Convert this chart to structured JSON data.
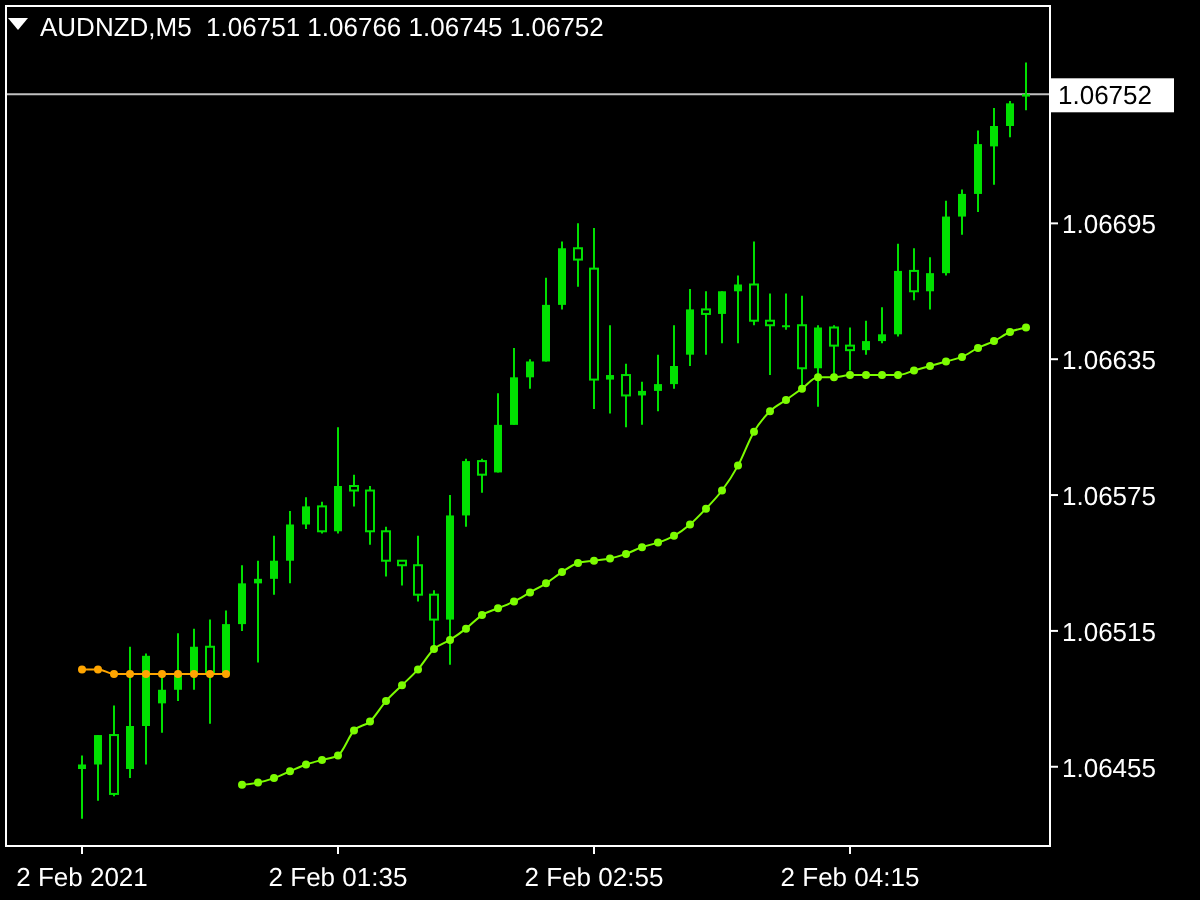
{
  "chart_data": {
    "type": "candlestick",
    "title": "AUDNZD,M5  1.06751 1.06766 1.06745 1.06752",
    "color": "#00e000",
    "categories": [
      "2 Feb 2021",
      null,
      null,
      null,
      null,
      null,
      null,
      null,
      null,
      null,
      null,
      null,
      null,
      null,
      null,
      null,
      "2 Feb 01:35",
      null,
      null,
      null,
      null,
      null,
      null,
      null,
      null,
      null,
      null,
      null,
      null,
      null,
      null,
      null,
      "2 Feb 02:55",
      null,
      null,
      null,
      null,
      null,
      null,
      null,
      null,
      null,
      null,
      null,
      null,
      null,
      null,
      null,
      "2 Feb 04:15",
      null,
      null,
      null,
      null,
      null,
      null,
      null,
      null,
      null,
      null,
      null
    ],
    "ohlc": [
      [
        1.06454,
        1.0646,
        1.06432,
        1.06456
      ],
      [
        1.06456,
        1.06469,
        1.0644,
        1.06469
      ],
      [
        1.06469,
        1.06482,
        1.06442,
        1.06443
      ],
      [
        1.06454,
        1.06508,
        1.0645,
        1.06473
      ],
      [
        1.06473,
        1.06505,
        1.06456,
        1.06504
      ],
      [
        1.06483,
        1.06496,
        1.0647,
        1.06489
      ],
      [
        1.06489,
        1.06514,
        1.06484,
        1.06496
      ],
      [
        1.06496,
        1.06516,
        1.06489,
        1.06508
      ],
      [
        1.06508,
        1.0652,
        1.06474,
        1.06496
      ],
      [
        1.06496,
        1.06524,
        1.06496,
        1.06518
      ],
      [
        1.06518,
        1.06544,
        1.06515,
        1.06536
      ],
      [
        1.06536,
        1.06546,
        1.06501,
        1.06538
      ],
      [
        1.06538,
        1.06557,
        1.06531,
        1.06546
      ],
      [
        1.06546,
        1.06568,
        1.06536,
        1.06562
      ],
      [
        1.06562,
        1.06574,
        1.0656,
        1.0657
      ],
      [
        1.0657,
        1.06572,
        1.06558,
        1.06559
      ],
      [
        1.06559,
        1.06605,
        1.06558,
        1.06579
      ],
      [
        1.06579,
        1.06584,
        1.0657,
        1.06577
      ],
      [
        1.06577,
        1.06579,
        1.06553,
        1.06559
      ],
      [
        1.06559,
        1.06561,
        1.06539,
        1.06546
      ],
      [
        1.06546,
        1.06546,
        1.06535,
        1.06544
      ],
      [
        1.06544,
        1.06557,
        1.06528,
        1.06531
      ],
      [
        1.06531,
        1.06533,
        1.06508,
        1.0652
      ],
      [
        1.0652,
        1.06575,
        1.065,
        1.06566
      ],
      [
        1.06566,
        1.06591,
        1.06561,
        1.0659
      ],
      [
        1.0659,
        1.06591,
        1.06576,
        1.06584
      ],
      [
        1.06585,
        1.0662,
        1.06585,
        1.06606
      ],
      [
        1.06606,
        1.0664,
        1.06606,
        1.06627
      ],
      [
        1.06627,
        1.06635,
        1.06622,
        1.06634
      ],
      [
        1.06634,
        1.06671,
        1.06634,
        1.06659
      ],
      [
        1.06659,
        1.06687,
        1.06657,
        1.06684
      ],
      [
        1.06684,
        1.06695,
        1.06667,
        1.06679
      ],
      [
        1.06675,
        1.06693,
        1.06613,
        1.06626
      ],
      [
        1.06626,
        1.0665,
        1.06611,
        1.06628
      ],
      [
        1.06628,
        1.06633,
        1.06605,
        1.06619
      ],
      [
        1.06619,
        1.06625,
        1.06606,
        1.06621
      ],
      [
        1.06621,
        1.06637,
        1.06612,
        1.06624
      ],
      [
        1.06624,
        1.0665,
        1.06622,
        1.06632
      ],
      [
        1.06637,
        1.06666,
        1.06632,
        1.06657
      ],
      [
        1.06657,
        1.06665,
        1.06637,
        1.06655
      ],
      [
        1.06655,
        1.06665,
        1.06642,
        1.06665
      ],
      [
        1.06665,
        1.06672,
        1.06642,
        1.06668
      ],
      [
        1.06668,
        1.06687,
        1.0665,
        1.06652
      ],
      [
        1.06652,
        1.06664,
        1.06628,
        1.0665
      ],
      [
        1.0665,
        1.06664,
        1.06648,
        1.0665
      ],
      [
        1.0665,
        1.06663,
        1.06621,
        1.06631
      ],
      [
        1.06631,
        1.0665,
        1.06614,
        1.06649
      ],
      [
        1.06649,
        1.0665,
        1.06628,
        1.06641
      ],
      [
        1.06641,
        1.06649,
        1.0663,
        1.06639
      ],
      [
        1.06639,
        1.06652,
        1.06637,
        1.06643
      ],
      [
        1.06643,
        1.06658,
        1.06642,
        1.06646
      ],
      [
        1.06646,
        1.06686,
        1.06645,
        1.06674
      ],
      [
        1.06674,
        1.06684,
        1.06661,
        1.06665
      ],
      [
        1.06665,
        1.0668,
        1.06657,
        1.06673
      ],
      [
        1.06673,
        1.06705,
        1.06672,
        1.06698
      ],
      [
        1.06698,
        1.0671,
        1.0669,
        1.06708
      ],
      [
        1.06708,
        1.06736,
        1.067,
        1.0673
      ],
      [
        1.06729,
        1.06746,
        1.06712,
        1.06738
      ],
      [
        1.06738,
        1.06749,
        1.06733,
        1.06748
      ],
      [
        1.06751,
        1.06766,
        1.06745,
        1.06752
      ]
    ],
    "series": [
      {
        "type": "line",
        "color": "#ffa500",
        "values": [
          1.06498,
          1.06498,
          1.06496,
          1.06496,
          1.06496,
          1.06496,
          1.06496,
          1.06496,
          1.06496,
          1.06496,
          null,
          null,
          null,
          null,
          null,
          null,
          null,
          null,
          null,
          null,
          null,
          null,
          null,
          null,
          null,
          null,
          null,
          null,
          null,
          null,
          null,
          null,
          null,
          null,
          null,
          null,
          null,
          null,
          null,
          null,
          null,
          null,
          null,
          null,
          null,
          null,
          null,
          null,
          null,
          null,
          null,
          null,
          null,
          null,
          null,
          null,
          null,
          null,
          null,
          null
        ]
      },
      {
        "type": "line",
        "color": "#7cfc00",
        "values": [
          null,
          null,
          null,
          null,
          null,
          null,
          null,
          null,
          null,
          null,
          1.06447,
          1.06448,
          1.0645,
          1.06453,
          1.06456,
          1.06458,
          1.0646,
          1.06471,
          1.06475,
          1.06484,
          1.06491,
          1.06498,
          1.06507,
          1.06511,
          1.06516,
          1.06522,
          1.06525,
          1.06528,
          1.06532,
          1.06536,
          1.06541,
          1.06545,
          1.06546,
          1.06547,
          1.06549,
          1.06552,
          1.06554,
          1.06557,
          1.06562,
          1.06569,
          1.06577,
          1.06588,
          1.06603,
          1.06612,
          1.06617,
          1.06622,
          1.06627,
          1.06627,
          1.06628,
          1.06628,
          1.06628,
          1.06628,
          1.0663,
          1.06632,
          1.06634,
          1.06636,
          1.0664,
          1.06643,
          1.06647,
          1.06649
        ]
      }
    ],
    "ylim": [
      1.0642,
      1.06791
    ],
    "yticks": [
      1.06455,
      1.06515,
      1.06575,
      1.06635,
      1.06695
    ],
    "ref_lines": [
      {
        "axis": "y",
        "value": 1.06752,
        "label": "1.06752",
        "color": "#c0c0c0"
      }
    ],
    "grid": false,
    "marker": "circle",
    "line_style": "solid"
  }
}
